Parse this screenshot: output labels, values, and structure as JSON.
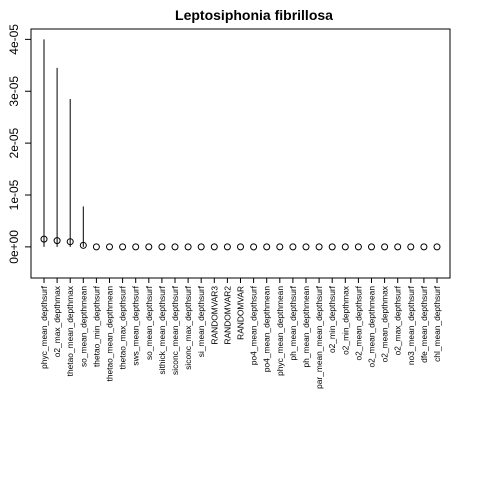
{
  "chart_data": {
    "type": "scatter",
    "title": "Leptosiphonia fibrillosa",
    "xlabel": "",
    "ylabel": "",
    "ylim": [
      -6e-06,
      4.2e-05
    ],
    "yticks": [
      0,
      1e-05,
      2e-05,
      3e-05,
      4e-05
    ],
    "ytick_labels": [
      "0e+00",
      "1e-05",
      "2e-05",
      "3e-05",
      "4e-05"
    ],
    "grid": false,
    "legend": "none",
    "categories": [
      "phyc_mean_depthsurf",
      "o2_max_depthmax",
      "thetao_mean_depthmax",
      "so_mean_depthmean",
      "thetao_min_depthsurf",
      "thetao_mean_depthmean",
      "thetao_max_depthsurf",
      "sws_mean_depthsurf",
      "so_mean_depthsurf",
      "sithick_mean_depthsurf",
      "siconc_mean_depthsurf",
      "siconc_max_depthsurf",
      "si_mean_depthsurf",
      "RANDOMVAR3",
      "RANDOMVAR2",
      "RANDOMVAR",
      "po4_mean_depthsurf",
      "po4_mean_depthmean",
      "phyc_mean_depthmean",
      "ph_mean_depthsurf",
      "ph_mean_depthmean",
      "par_mean_mean_depthsurf",
      "o2_min_depthsurf",
      "o2_min_depthmax",
      "o2_mean_depthsurf",
      "o2_mean_depthmean",
      "o2_mean_depthmax",
      "o2_max_depthsurf",
      "no3_mean_depthsurf",
      "dfe_mean_depthsurf",
      "chl_mean_depthsurf"
    ],
    "series": [
      {
        "values": [
          1.5e-06,
          1.2e-06,
          1e-06,
          3e-07,
          0,
          0,
          0,
          0,
          0,
          0,
          0,
          0,
          0,
          0,
          0,
          0,
          0,
          0,
          0,
          0,
          0,
          0,
          0,
          0,
          0,
          0,
          0,
          0,
          0,
          0,
          0
        ],
        "upper": [
          4e-05,
          3.45e-05,
          2.85e-05,
          7.8e-06,
          0,
          0,
          0,
          0,
          0,
          0,
          0,
          0,
          0,
          0,
          0,
          0,
          0,
          0,
          0,
          0,
          0,
          0,
          0,
          0,
          0,
          0,
          0,
          0,
          0,
          0,
          0
        ],
        "lower": [
          0,
          0,
          0,
          0,
          0,
          0,
          0,
          0,
          0,
          0,
          0,
          0,
          0,
          0,
          0,
          0,
          0,
          0,
          0,
          0,
          0,
          0,
          0,
          0,
          0,
          0,
          0,
          0,
          0,
          0,
          0
        ]
      }
    ]
  }
}
